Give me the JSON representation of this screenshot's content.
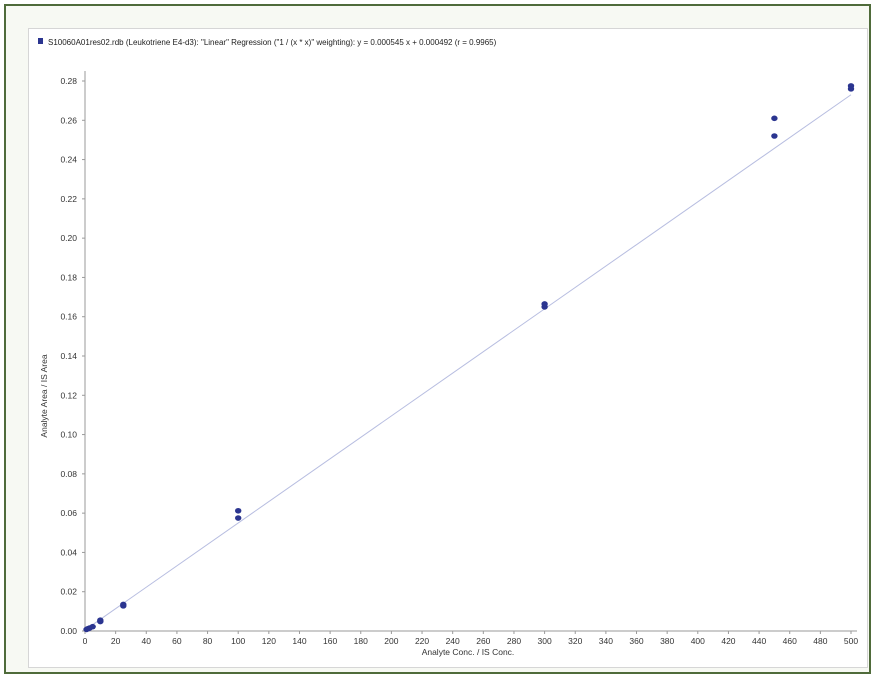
{
  "chart_data": {
    "type": "scatter",
    "legend": {
      "text": "S10060A01res02.rdb (Leukotriene E4-d3): \"Linear\" Regression (\"1 / (x * x)\" weighting): y = 0.000545 x + 0.000492 (r = 0.9965)",
      "placement": "top-left",
      "marker_color": "#2b3590"
    },
    "xlabel": "Analyte Conc. / IS Conc.",
    "ylabel": "Analyte Area / IS Area",
    "xlim": [
      0,
      500
    ],
    "ylim": [
      0,
      0.28
    ],
    "x_ticks": [
      "0",
      "20",
      "40",
      "60",
      "80",
      "100",
      "120",
      "140",
      "160",
      "180",
      "200",
      "220",
      "240",
      "260",
      "280",
      "300",
      "320",
      "340",
      "360",
      "380",
      "400",
      "420",
      "440",
      "460",
      "480",
      "500"
    ],
    "y_ticks": [
      "0.00",
      "0.02",
      "0.04",
      "0.06",
      "0.08",
      "0.10",
      "0.12",
      "0.14",
      "0.16",
      "0.18",
      "0.20",
      "0.22",
      "0.24",
      "0.26",
      "0.28"
    ],
    "grid": false,
    "series": [
      {
        "type": "scatter",
        "color": "#2b3590",
        "points": [
          {
            "x": 1,
            "y": 0.0008
          },
          {
            "x": 2,
            "y": 0.0012
          },
          {
            "x": 3,
            "y": 0.0015
          },
          {
            "x": 5,
            "y": 0.0022
          },
          {
            "x": 10,
            "y": 0.0048
          },
          {
            "x": 10,
            "y": 0.0055
          },
          {
            "x": 25,
            "y": 0.0128
          },
          {
            "x": 25,
            "y": 0.0135
          },
          {
            "x": 100,
            "y": 0.0575
          },
          {
            "x": 100,
            "y": 0.0612
          },
          {
            "x": 300,
            "y": 0.165
          },
          {
            "x": 300,
            "y": 0.1665
          },
          {
            "x": 450,
            "y": 0.252
          },
          {
            "x": 450,
            "y": 0.261
          },
          {
            "x": 500,
            "y": 0.276
          },
          {
            "x": 500,
            "y": 0.2775
          }
        ]
      },
      {
        "type": "line",
        "color": "#b7bde0",
        "slope": 0.000545,
        "intercept": 0.000492
      }
    ]
  }
}
